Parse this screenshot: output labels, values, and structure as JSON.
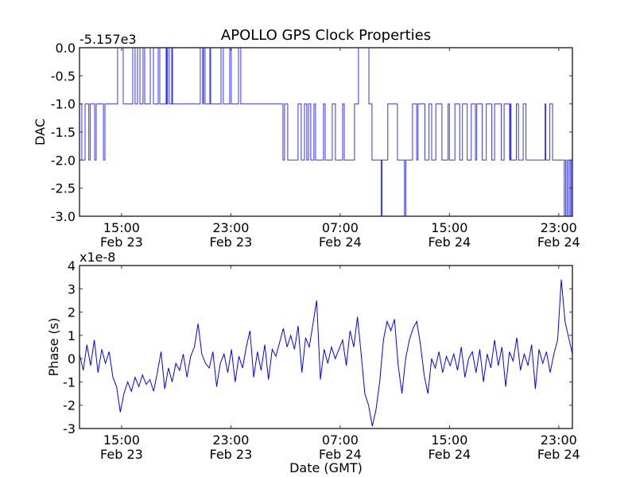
{
  "title": "APOLLO GPS Clock Properties",
  "colors": {
    "line": "#0000ff",
    "axes": "#333333"
  },
  "chart_data": [
    {
      "type": "line",
      "name": "dac",
      "title": "APOLLO GPS Clock Properties",
      "ylabel": "DAC",
      "xlabel": "",
      "offset_text": "-5.157e3",
      "x_units": "hours since Feb 23 00:00 GMT",
      "xlim": [
        11.92,
        48.0
      ],
      "ylim": [
        -3.0,
        0.0
      ],
      "yticks": [
        0.0,
        -0.5,
        -1.0,
        -1.5,
        -2.0,
        -2.5,
        -3.0
      ],
      "ytick_labels": [
        "0.0",
        "-0.5",
        "-1.0",
        "-1.5",
        "-2.0",
        "-2.5",
        "-3.0"
      ],
      "xticks": [
        15,
        23,
        31,
        39,
        47
      ],
      "xtick_labels": [
        [
          "15:00",
          "Feb 23"
        ],
        [
          "23:00",
          "Feb 23"
        ],
        [
          "07:00",
          "Feb 24"
        ],
        [
          "15:00",
          "Feb 24"
        ],
        [
          "23:00",
          "Feb 24"
        ]
      ],
      "steps": [
        [
          11.92,
          -1
        ],
        [
          12.09,
          -2
        ],
        [
          12.33,
          -1
        ],
        [
          12.6,
          -2
        ],
        [
          12.7,
          -1
        ],
        [
          13.03,
          -2
        ],
        [
          13.14,
          -1
        ],
        [
          13.67,
          -2
        ],
        [
          13.78,
          -1
        ],
        [
          14.71,
          0
        ],
        [
          15.12,
          -1
        ],
        [
          15.82,
          0
        ],
        [
          15.99,
          -1
        ],
        [
          16.17,
          0
        ],
        [
          16.34,
          -1
        ],
        [
          16.57,
          0
        ],
        [
          16.69,
          -1
        ],
        [
          17.1,
          0
        ],
        [
          17.33,
          -1
        ],
        [
          17.68,
          0
        ],
        [
          17.8,
          -1
        ],
        [
          18.26,
          0
        ],
        [
          18.3,
          -1
        ],
        [
          18.36,
          0
        ],
        [
          18.49,
          -1
        ],
        [
          18.67,
          0
        ],
        [
          18.73,
          -1
        ],
        [
          20.76,
          0
        ],
        [
          20.94,
          -1
        ],
        [
          21.0,
          0
        ],
        [
          21.11,
          -1
        ],
        [
          21.46,
          0
        ],
        [
          21.52,
          -1
        ],
        [
          22.28,
          0
        ],
        [
          22.45,
          -1
        ],
        [
          22.92,
          0
        ],
        [
          23.03,
          -1
        ],
        [
          23.56,
          0
        ],
        [
          23.73,
          -1
        ],
        [
          26.81,
          -2
        ],
        [
          26.93,
          -1
        ],
        [
          27.16,
          -2
        ],
        [
          27.92,
          -1
        ],
        [
          28.15,
          -2
        ],
        [
          28.39,
          -1
        ],
        [
          28.56,
          -2
        ],
        [
          28.68,
          -1
        ],
        [
          28.85,
          -2
        ],
        [
          29.08,
          -1
        ],
        [
          29.2,
          -2
        ],
        [
          29.78,
          -1
        ],
        [
          29.9,
          -2
        ],
        [
          30.42,
          -1
        ],
        [
          30.65,
          -2
        ],
        [
          31.18,
          -1
        ],
        [
          31.3,
          -2
        ],
        [
          32.05,
          -1
        ],
        [
          32.34,
          0
        ],
        [
          33.1,
          -1
        ],
        [
          33.33,
          -2
        ],
        [
          34.0,
          -3
        ],
        [
          34.06,
          -2
        ],
        [
          34.49,
          -1
        ],
        [
          35.19,
          -2
        ],
        [
          35.71,
          -3
        ],
        [
          35.8,
          -2
        ],
        [
          36.3,
          -1
        ],
        [
          36.6,
          -2
        ],
        [
          36.7,
          -1
        ],
        [
          37.2,
          -2
        ],
        [
          37.5,
          -1
        ],
        [
          37.7,
          -2
        ],
        [
          38.0,
          -1
        ],
        [
          38.45,
          -2
        ],
        [
          38.9,
          -1
        ],
        [
          39.0,
          -2
        ],
        [
          39.4,
          -1
        ],
        [
          39.75,
          -2
        ],
        [
          39.95,
          -1
        ],
        [
          40.3,
          -2
        ],
        [
          40.6,
          -1
        ],
        [
          40.9,
          -2
        ],
        [
          41.0,
          -1
        ],
        [
          41.4,
          -2
        ],
        [
          41.7,
          -1
        ],
        [
          42.1,
          -2
        ],
        [
          42.3,
          -1
        ],
        [
          42.8,
          -2
        ],
        [
          43.0,
          -1
        ],
        [
          43.4,
          -2
        ],
        [
          43.45,
          -1
        ],
        [
          43.5,
          -2
        ],
        [
          43.9,
          -1
        ],
        [
          44.05,
          -2
        ],
        [
          44.4,
          -1
        ],
        [
          44.6,
          -2
        ],
        [
          46.0,
          -1
        ],
        [
          46.05,
          -2
        ],
        [
          46.35,
          -1
        ],
        [
          46.55,
          -2
        ],
        [
          47.4,
          -3
        ],
        [
          47.5,
          -2
        ],
        [
          47.6,
          -3
        ],
        [
          47.7,
          -2
        ],
        [
          47.82,
          -3
        ],
        [
          47.9,
          -2
        ],
        [
          48.0,
          -2
        ]
      ]
    },
    {
      "type": "line",
      "name": "phase",
      "ylabel": "Phase (s)",
      "xlabel": "Date (GMT)",
      "offset_text": "x1e-8",
      "x_units": "hours since Feb 23 00:00 GMT",
      "xlim": [
        11.92,
        48.0
      ],
      "ylim": [
        -3,
        4
      ],
      "yticks": [
        4,
        3,
        2,
        1,
        0,
        -1,
        -2,
        -3
      ],
      "ytick_labels": [
        "4",
        "3",
        "2",
        "1",
        "0",
        "-1",
        "-2",
        "-3"
      ],
      "xticks": [
        15,
        23,
        31,
        39,
        47
      ],
      "xtick_labels": [
        [
          "15:00",
          "Feb 23"
        ],
        [
          "23:00",
          "Feb 23"
        ],
        [
          "07:00",
          "Feb 24"
        ],
        [
          "15:00",
          "Feb 24"
        ],
        [
          "23:00",
          "Feb 24"
        ]
      ],
      "x_start": 11.92,
      "x_end": 48.0,
      "values": [
        0.2,
        -0.5,
        0.6,
        -0.3,
        0.8,
        -0.6,
        0.4,
        -0.2,
        0.3,
        -0.8,
        -1.2,
        -2.3,
        -1.5,
        -1.0,
        -1.4,
        -0.8,
        -1.2,
        -0.7,
        -1.1,
        -0.9,
        -1.4,
        -0.6,
        0.3,
        -1.3,
        -0.4,
        -1.0,
        -0.2,
        -0.5,
        0.2,
        -0.8,
        0.1,
        0.5,
        1.5,
        0.2,
        -0.2,
        -0.4,
        0.3,
        -1.2,
        -0.2,
        0.2,
        -0.6,
        0.4,
        -1.0,
        0.1,
        -0.4,
        0.5,
        1.2,
        -0.8,
        0.3,
        -0.5,
        0.6,
        -0.9,
        0.4,
        0.1,
        0.7,
        1.3,
        0.5,
        1.0,
        0.4,
        1.4,
        -0.6,
        0.9,
        0.5,
        1.5,
        2.5,
        -0.9,
        0.4,
        -0.2,
        0.5,
        0.0,
        0.4,
        0.8,
        -0.3,
        1.2,
        0.5,
        1.8,
        0.2,
        -1.5,
        -2.0,
        -2.9,
        -2.2,
        -1.0,
        0.8,
        1.6,
        1.2,
        1.7,
        -0.3,
        -1.5,
        0.0,
        0.8,
        1.3,
        1.6,
        0.6,
        -0.7,
        -1.5,
        0.0,
        -0.4,
        0.3,
        -0.6,
        0.1,
        -0.3,
        0.2,
        -0.5,
        0.5,
        -0.8,
        0.0,
        0.3,
        -0.6,
        0.4,
        -1.0,
        0.2,
        -0.4,
        0.8,
        -0.3,
        0.5,
        -1.2,
        0.3,
        -0.1,
        0.9,
        -0.5,
        0.2,
        -0.3,
        0.6,
        -1.3,
        0.4,
        -0.2,
        0.3,
        -0.6,
        0.2,
        0.8,
        3.4,
        1.6,
        0.9,
        0.2
      ]
    }
  ]
}
